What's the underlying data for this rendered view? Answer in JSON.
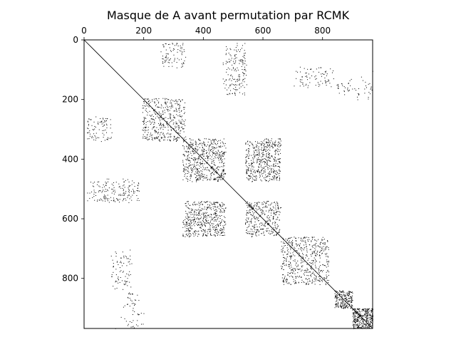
{
  "chart_data": {
    "type": "sparsity-pattern",
    "title": "Masque de A avant permutation par RCMK",
    "matrix_size": 968,
    "xlim": [
      0,
      968
    ],
    "ylim": [
      968,
      0
    ],
    "x_ticks": [
      0,
      200,
      400,
      600,
      800
    ],
    "y_ticks": [
      0,
      200,
      400,
      600,
      800
    ],
    "x_tick_labels": [
      "0",
      "200",
      "400",
      "600",
      "800"
    ],
    "y_tick_labels": [
      "0",
      "200",
      "400",
      "600",
      "800"
    ],
    "x_axis_position": "top",
    "grid": false,
    "marker_color": "#000000",
    "diagonal": {
      "from": 0,
      "to": 968
    },
    "nonzero_blocks": [
      {
        "rows": [
          0,
          90
        ],
        "cols": [
          255,
          340
        ],
        "density": 0.004
      },
      {
        "rows": [
          30,
          180
        ],
        "cols": [
          465,
          545
        ],
        "density": 0.006
      },
      {
        "rows": [
          95,
          155
        ],
        "cols": [
          700,
          820
        ],
        "density": 0.004
      },
      {
        "rows": [
          145,
          175
        ],
        "cols": [
          845,
          905
        ],
        "density": 0.006
      },
      {
        "rows": [
          100,
          200
        ],
        "cols": [
          920,
          968
        ],
        "density": 0.002
      },
      {
        "rows": [
          195,
          340
        ],
        "cols": [
          195,
          340
        ],
        "density": 0.02
      },
      {
        "rows": [
          260,
          340
        ],
        "cols": [
          10,
          95
        ],
        "density": 0.008
      },
      {
        "rows": [
          340,
          470
        ],
        "cols": [
          330,
          475
        ],
        "density": 0.015
      },
      {
        "rows": [
          340,
          470
        ],
        "cols": [
          540,
          655
        ],
        "density": 0.015
      },
      {
        "rows": [
          470,
          540
        ],
        "cols": [
          10,
          185
        ],
        "density": 0.008
      },
      {
        "rows": [
          540,
          660
        ],
        "cols": [
          330,
          475
        ],
        "density": 0.015
      },
      {
        "rows": [
          540,
          660
        ],
        "cols": [
          540,
          655
        ],
        "density": 0.012
      },
      {
        "rows": [
          660,
          820
        ],
        "cols": [
          660,
          820
        ],
        "density": 0.02
      },
      {
        "rows": [
          720,
          840
        ],
        "cols": [
          90,
          160
        ],
        "density": 0.006
      },
      {
        "rows": [
          840,
          900
        ],
        "cols": [
          840,
          900
        ],
        "density": 0.06
      },
      {
        "rows": [
          900,
          968
        ],
        "cols": [
          900,
          968
        ],
        "density": 0.08
      },
      {
        "rows": [
          850,
          968
        ],
        "cols": [
          130,
          200
        ],
        "density": 0.004
      }
    ]
  }
}
